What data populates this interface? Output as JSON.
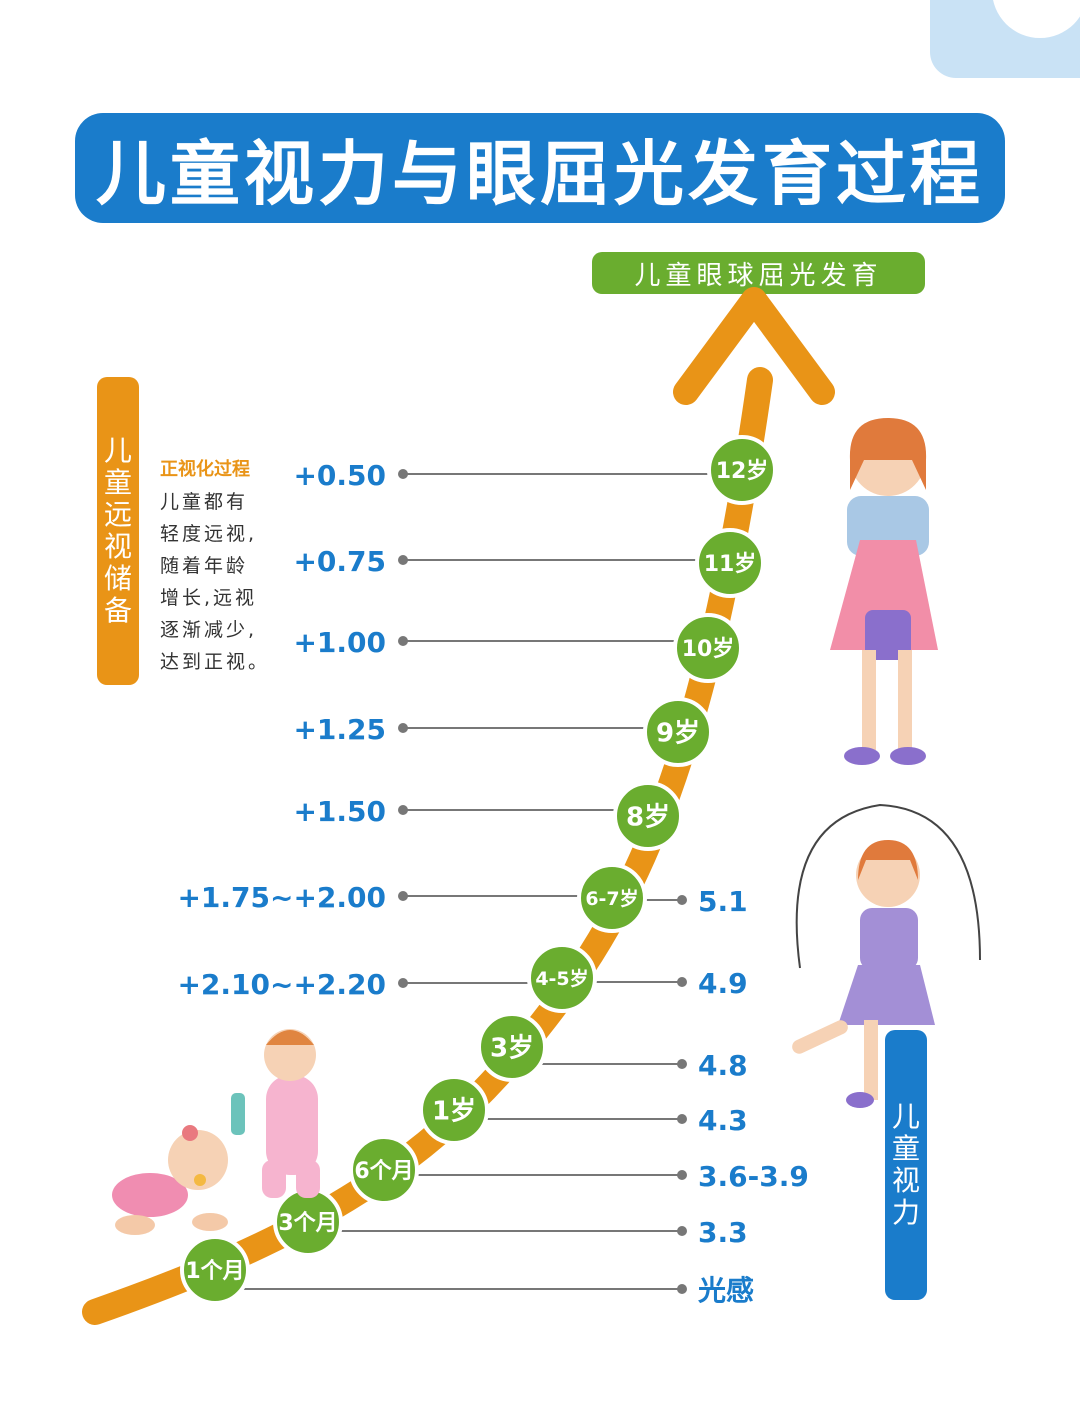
{
  "title": "儿童视力与眼屈光发育过程",
  "curve_label": "儿童眼球屈光发育",
  "left_bar": [
    "儿",
    "童",
    "远",
    "视",
    "储",
    "备"
  ],
  "right_bar": [
    "儿",
    "童",
    "视",
    "力"
  ],
  "note": {
    "title": "正视化过程",
    "lines": [
      "儿童都有",
      "轻度远视,",
      "随着年龄",
      "增长,远视",
      "逐渐减少,",
      "达到正视。"
    ]
  },
  "colors": {
    "blue": "#1a7ccb",
    "green": "#6aad2f",
    "orange": "#e99417",
    "gray": "#777777"
  },
  "stages": [
    {
      "age": "1个月",
      "refraction": "",
      "vision": "光感"
    },
    {
      "age": "3个月",
      "refraction": "",
      "vision": "3.3"
    },
    {
      "age": "6个月",
      "refraction": "",
      "vision": "3.6-3.9"
    },
    {
      "age": "1岁",
      "refraction": "",
      "vision": "4.3"
    },
    {
      "age": "3岁",
      "refraction": "",
      "vision": "4.8"
    },
    {
      "age": "4-5岁",
      "refraction": "+2.10~+2.20",
      "vision": "4.9"
    },
    {
      "age": "6-7岁",
      "refraction": "+1.75~+2.00",
      "vision": "5.1"
    },
    {
      "age": "8岁",
      "refraction": "+1.50",
      "vision": ""
    },
    {
      "age": "9岁",
      "refraction": "+1.25",
      "vision": ""
    },
    {
      "age": "10岁",
      "refraction": "+1.00",
      "vision": ""
    },
    {
      "age": "11岁",
      "refraction": "+0.75",
      "vision": ""
    },
    {
      "age": "12岁",
      "refraction": "+0.50",
      "vision": ""
    }
  ]
}
